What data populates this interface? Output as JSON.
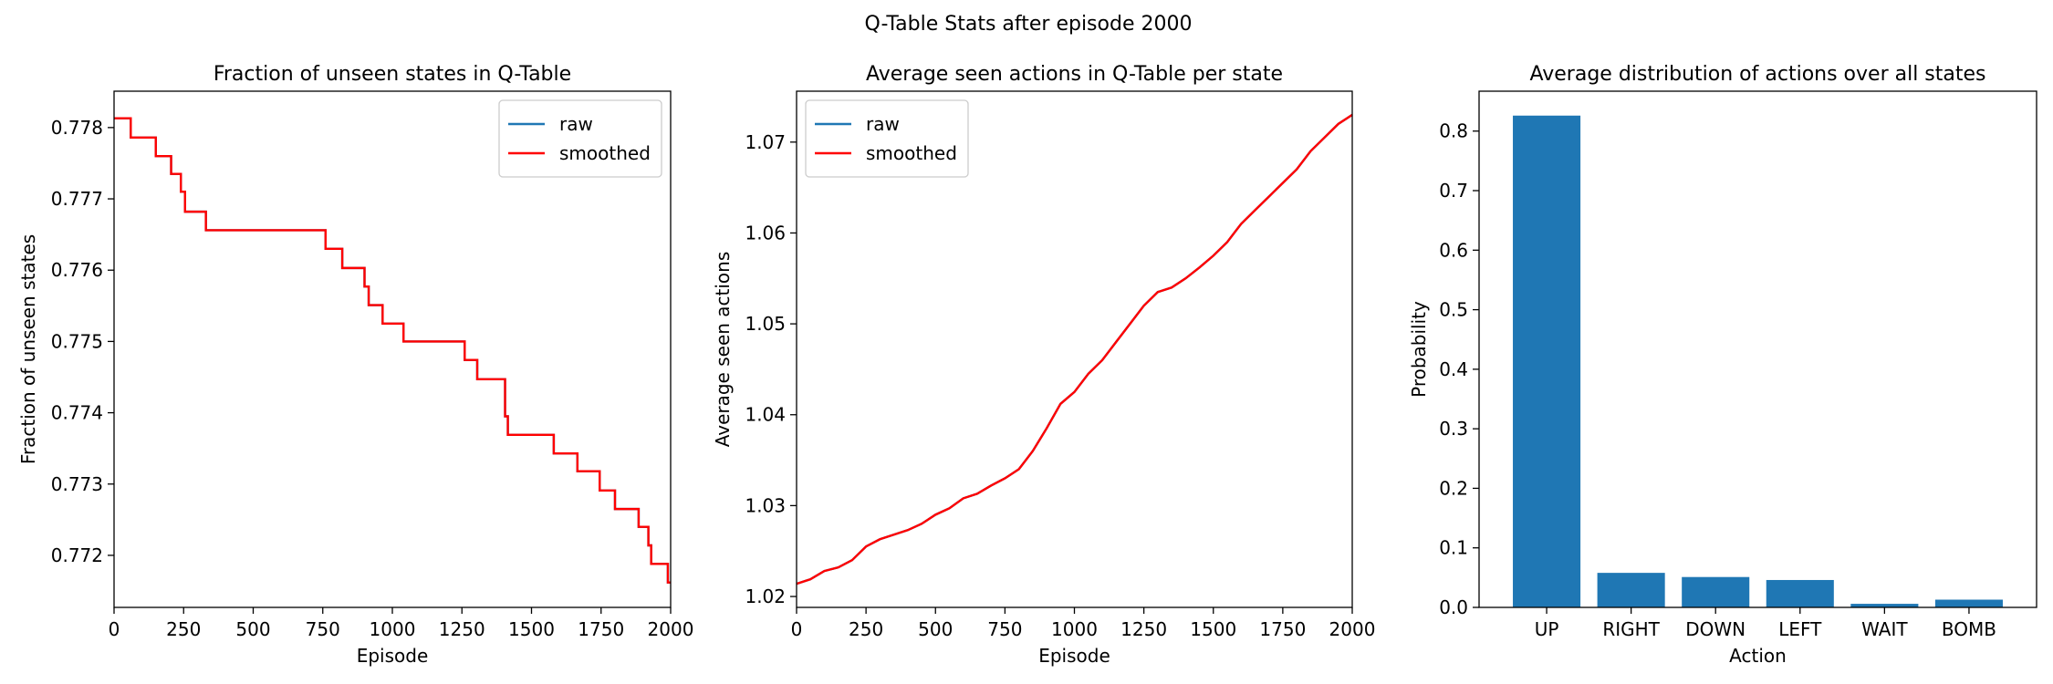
{
  "suptitle": "Q-Table Stats after episode 2000",
  "chart_data": [
    {
      "type": "line",
      "title": "Fraction of unseen states in Q-Table",
      "xlabel": "Episode",
      "ylabel": "Fraction of unseen states",
      "xlim": [
        0,
        2000
      ],
      "ylim": [
        0.77127,
        0.77851
      ],
      "xticks": [
        0,
        250,
        500,
        750,
        1000,
        1250,
        1500,
        1750,
        2000
      ],
      "yticks": [
        0.772,
        0.773,
        0.774,
        0.775,
        0.776,
        0.777,
        0.778
      ],
      "ytick_labels": [
        "0.772",
        "0.773",
        "0.774",
        "0.775",
        "0.776",
        "0.777",
        "0.778"
      ],
      "legend": "top-right",
      "series": [
        {
          "name": "raw",
          "color": "#1f77b4",
          "x": [
            0,
            60,
            60,
            150,
            150,
            205,
            205,
            240,
            240,
            255,
            255,
            330,
            330,
            760,
            760,
            820,
            820,
            900,
            900,
            915,
            915,
            965,
            965,
            1040,
            1040,
            1055,
            1055,
            1260,
            1260,
            1305,
            1305,
            1390,
            1390,
            1405,
            1405,
            1415,
            1415,
            1580,
            1580,
            1665,
            1665,
            1745,
            1745,
            1800,
            1800,
            1885,
            1885,
            1920,
            1920,
            1930,
            1930,
            1950,
            1950,
            1990,
            1990,
            2000
          ],
          "y": [
            0.77813,
            0.77813,
            0.77786,
            0.77786,
            0.7776,
            0.7776,
            0.77735,
            0.77735,
            0.7771,
            0.7771,
            0.77682,
            0.77682,
            0.77656,
            0.77656,
            0.7763,
            0.7763,
            0.77603,
            0.77603,
            0.77577,
            0.77577,
            0.77551,
            0.77551,
            0.77525,
            0.77525,
            0.775,
            0.775,
            0.775,
            0.775,
            0.77474,
            0.77474,
            0.77447,
            0.77447,
            0.77447,
            0.77447,
            0.77395,
            0.77395,
            0.77369,
            0.77369,
            0.77343,
            0.77343,
            0.77318,
            0.77318,
            0.77291,
            0.77291,
            0.77265,
            0.77265,
            0.7724,
            0.7724,
            0.77214,
            0.77214,
            0.77188,
            0.77188,
            0.77188,
            0.77188,
            0.77162,
            0.77162
          ]
        },
        {
          "name": "smoothed",
          "color": "#ff0000",
          "x": [
            0,
            60,
            60,
            150,
            150,
            205,
            205,
            240,
            240,
            255,
            255,
            330,
            330,
            760,
            760,
            820,
            820,
            900,
            900,
            915,
            915,
            965,
            965,
            1040,
            1040,
            1055,
            1055,
            1260,
            1260,
            1305,
            1305,
            1390,
            1390,
            1405,
            1405,
            1415,
            1415,
            1580,
            1580,
            1665,
            1665,
            1745,
            1745,
            1800,
            1800,
            1885,
            1885,
            1920,
            1920,
            1930,
            1930,
            1950,
            1950,
            1990,
            1990,
            2000
          ],
          "y": [
            0.77813,
            0.77813,
            0.77786,
            0.77786,
            0.7776,
            0.7776,
            0.77735,
            0.77735,
            0.7771,
            0.7771,
            0.77682,
            0.77682,
            0.77656,
            0.77656,
            0.7763,
            0.7763,
            0.77603,
            0.77603,
            0.77577,
            0.77577,
            0.77551,
            0.77551,
            0.77525,
            0.77525,
            0.775,
            0.775,
            0.775,
            0.775,
            0.77474,
            0.77474,
            0.77447,
            0.77447,
            0.77447,
            0.77447,
            0.77395,
            0.77395,
            0.77369,
            0.77369,
            0.77343,
            0.77343,
            0.77318,
            0.77318,
            0.77291,
            0.77291,
            0.77265,
            0.77265,
            0.7724,
            0.7724,
            0.77214,
            0.77214,
            0.77188,
            0.77188,
            0.77188,
            0.77188,
            0.77162,
            0.77162
          ]
        }
      ]
    },
    {
      "type": "line",
      "title": "Average seen actions in Q-Table per state",
      "xlabel": "Episode",
      "ylabel": "Average seen actions",
      "xlim": [
        0,
        2000
      ],
      "ylim": [
        1.0188,
        1.0756
      ],
      "xticks": [
        0,
        250,
        500,
        750,
        1000,
        1250,
        1500,
        1750,
        2000
      ],
      "yticks": [
        1.02,
        1.03,
        1.04,
        1.05,
        1.06,
        1.07
      ],
      "ytick_labels": [
        "1.02",
        "1.03",
        "1.04",
        "1.05",
        "1.06",
        "1.07"
      ],
      "legend": "top-left",
      "series": [
        {
          "name": "raw",
          "color": "#1f77b4",
          "x": [
            0,
            50,
            100,
            150,
            200,
            250,
            300,
            350,
            400,
            450,
            500,
            550,
            600,
            650,
            700,
            750,
            800,
            850,
            900,
            950,
            1000,
            1050,
            1100,
            1150,
            1200,
            1250,
            1300,
            1350,
            1400,
            1450,
            1500,
            1550,
            1600,
            1650,
            1700,
            1750,
            1800,
            1850,
            1900,
            1950,
            2000
          ],
          "y": [
            1.0214,
            1.0219,
            1.0228,
            1.0232,
            1.024,
            1.0255,
            1.0263,
            1.0268,
            1.0273,
            1.028,
            1.029,
            1.0297,
            1.0308,
            1.0313,
            1.0322,
            1.033,
            1.034,
            1.036,
            1.0385,
            1.0412,
            1.0425,
            1.0445,
            1.046,
            1.048,
            1.05,
            1.052,
            1.0535,
            1.054,
            1.055,
            1.0562,
            1.0575,
            1.059,
            1.061,
            1.0625,
            1.064,
            1.0655,
            1.067,
            1.069,
            1.0705,
            1.072,
            1.073
          ]
        },
        {
          "name": "smoothed",
          "color": "#ff0000",
          "x": [
            0,
            50,
            100,
            150,
            200,
            250,
            300,
            350,
            400,
            450,
            500,
            550,
            600,
            650,
            700,
            750,
            800,
            850,
            900,
            950,
            1000,
            1050,
            1100,
            1150,
            1200,
            1250,
            1300,
            1350,
            1400,
            1450,
            1500,
            1550,
            1600,
            1650,
            1700,
            1750,
            1800,
            1850,
            1900,
            1950,
            2000
          ],
          "y": [
            1.0214,
            1.0219,
            1.0228,
            1.0232,
            1.024,
            1.0255,
            1.0263,
            1.0268,
            1.0273,
            1.028,
            1.029,
            1.0297,
            1.0308,
            1.0313,
            1.0322,
            1.033,
            1.034,
            1.036,
            1.0385,
            1.0412,
            1.0425,
            1.0445,
            1.046,
            1.048,
            1.05,
            1.052,
            1.0535,
            1.054,
            1.055,
            1.0562,
            1.0575,
            1.059,
            1.061,
            1.0625,
            1.064,
            1.0655,
            1.067,
            1.069,
            1.0705,
            1.072,
            1.073
          ]
        }
      ]
    },
    {
      "type": "bar",
      "title": "Average distribution of actions over all states",
      "xlabel": "Action",
      "ylabel": "Probability",
      "ylim": [
        0,
        0.867
      ],
      "yticks": [
        0,
        0.1,
        0.2,
        0.3,
        0.4,
        0.5,
        0.6,
        0.7,
        0.8
      ],
      "ytick_labels": [
        "0.0",
        "0.1",
        "0.2",
        "0.3",
        "0.4",
        "0.5",
        "0.6",
        "0.7",
        "0.8"
      ],
      "categories": [
        "UP",
        "RIGHT",
        "DOWN",
        "LEFT",
        "WAIT",
        "BOMB"
      ],
      "values": [
        0.826,
        0.058,
        0.051,
        0.046,
        0.006,
        0.013
      ],
      "color": "#1f77b4"
    }
  ]
}
